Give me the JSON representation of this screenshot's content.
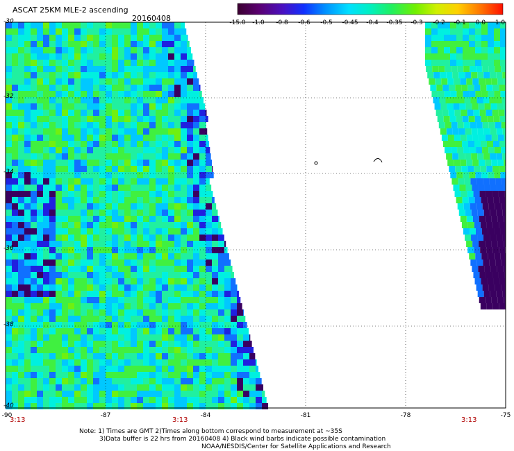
{
  "title": "ASCAT 25KM MLE-2 ascending",
  "date": "20160408",
  "colorbar": {
    "labels": [
      "-15.0",
      "-1.0",
      "-0.8",
      "-0.6",
      "-0.5",
      "-0.45",
      "-0.4",
      "-0.35",
      "-0.3",
      "-0.2",
      "-0.1",
      "0.0",
      "1.0"
    ],
    "colors": [
      "#3a0030",
      "#6a0090",
      "#3010e0",
      "#0060ff",
      "#00b4ff",
      "#00f0f0",
      "#00f090",
      "#40f030",
      "#90f000",
      "#e8f000",
      "#ffb000",
      "#ff5000",
      "#ff0000"
    ]
  },
  "axes": {
    "latitudes": [
      "-30",
      "-32",
      "-34",
      "-36",
      "-38",
      "-40"
    ],
    "longitudes": [
      "-90",
      "-87",
      "-84",
      "-81",
      "-78",
      "-75"
    ],
    "times": [
      "3:13",
      "3:13",
      "3:13"
    ]
  },
  "notes": [
    "Note: 1) Times are GMT 2)Times along bottom correspond to measurement at ~35S",
    "3)Data buffer is 22 hrs from 20160408 4) Black wind barbs indicate possible contamination",
    "NOAA/NESDIS/Center for Satellite Applications and Research"
  ]
}
